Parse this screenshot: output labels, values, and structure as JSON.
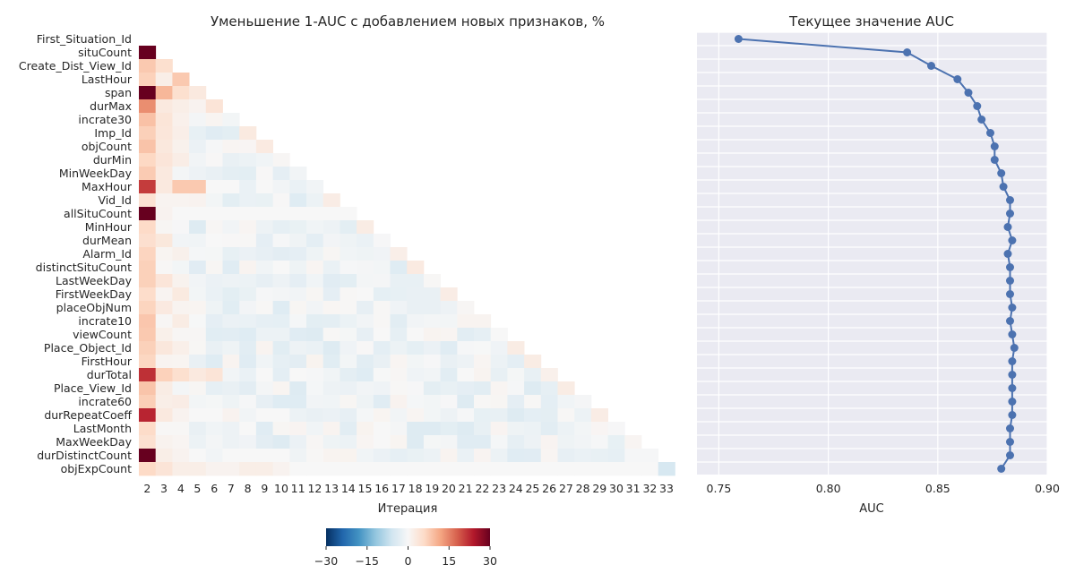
{
  "chart_data": [
    {
      "type": "heatmap",
      "title": "Уменьшение 1-AUC с добавлением новых признаков, %",
      "xlabel": "Итерация",
      "ylabel": "",
      "x_categories": [
        "2",
        "3",
        "4",
        "5",
        "6",
        "7",
        "8",
        "9",
        "10",
        "11",
        "12",
        "13",
        "14",
        "15",
        "16",
        "17",
        "18",
        "19",
        "20",
        "21",
        "22",
        "23",
        "24",
        "25",
        "26",
        "27",
        "28",
        "29",
        "30",
        "31",
        "32",
        "33"
      ],
      "y_categories": [
        "First_Situation_Id",
        "situCount",
        "Create_Dist_View_Id",
        "LastHour",
        "span",
        "durMax",
        "incrate30",
        "Imp_Id",
        "objCount",
        "durMin",
        "MinWeekDay",
        "MaxHour",
        "Vid_Id",
        "allSituCount",
        "MinHour",
        "durMean",
        "Alarm_Id",
        "distinctSituCount",
        "LastWeekDay",
        "FirstWeekDay",
        "placeObjNum",
        "incrate10",
        "viewCount",
        "Place_Object_Id",
        "FirstHour",
        "durTotal",
        "Place_View_Id",
        "incrate60",
        "durRepeatCoeff",
        "LastMonth",
        "MaxWeekDay",
        "durDistinctCount",
        "objExpCount"
      ],
      "value_range": [
        -30,
        30
      ],
      "colormap": "RdBu_r",
      "mask": "upper triangle — row i shows iterations 2..(i+1); first row empty",
      "key_values": {
        "situCount": [
          38
        ],
        "Create_Dist_View_Id": [
          8,
          5
        ],
        "LastHour": [
          7,
          2,
          8
        ],
        "span": [
          37,
          10,
          5,
          3
        ],
        "durMax": [
          14,
          3,
          2,
          1,
          4
        ],
        "allSituCount": [
          38,
          1,
          0,
          0,
          0,
          0,
          0,
          0,
          0,
          0,
          0,
          0,
          0
        ],
        "MaxHour": [
          21,
          3,
          8,
          8,
          0,
          0,
          -2,
          0,
          -1,
          -2,
          -1
        ],
        "durRepeatCoeff": [
          23,
          3,
          1,
          0,
          0,
          1,
          -1,
          0,
          0
        ],
        "durDistinctCount": [
          38,
          2,
          1,
          0,
          -1,
          0,
          0,
          0,
          0
        ],
        "durTotal": [
          22,
          7,
          5,
          3,
          4,
          -1,
          -2,
          0,
          -3
        ],
        "objExpCount": [
          6,
          4,
          2,
          2,
          1,
          1,
          2,
          2,
          1,
          0,
          0,
          0,
          0,
          0,
          0,
          0,
          0,
          0,
          0,
          0,
          0,
          0,
          0,
          0,
          0,
          0,
          0,
          0,
          0,
          0,
          0,
          -5
        ]
      },
      "colorbar": {
        "ticks": [
          -30,
          -15,
          0,
          15,
          30
        ],
        "placement": "bottom-center"
      }
    },
    {
      "type": "line",
      "title": "Текущее значение AUC",
      "xlabel": "AUC",
      "ylabel": "",
      "xlim": [
        0.74,
        0.9
      ],
      "xticks": [
        "0.75",
        "0.80",
        "0.85",
        "0.90"
      ],
      "grid": true,
      "categories": [
        "First_Situation_Id",
        "situCount",
        "Create_Dist_View_Id",
        "LastHour",
        "span",
        "durMax",
        "incrate30",
        "Imp_Id",
        "objCount",
        "durMin",
        "MinWeekDay",
        "MaxHour",
        "Vid_Id",
        "allSituCount",
        "MinHour",
        "durMean",
        "Alarm_Id",
        "distinctSituCount",
        "LastWeekDay",
        "FirstWeekDay",
        "placeObjNum",
        "incrate10",
        "viewCount",
        "Place_Object_Id",
        "FirstHour",
        "durTotal",
        "Place_View_Id",
        "incrate60",
        "durRepeatCoeff",
        "LastMonth",
        "MaxWeekDay",
        "durDistinctCount",
        "objExpCount"
      ],
      "values": [
        0.759,
        0.836,
        0.847,
        0.859,
        0.864,
        0.868,
        0.87,
        0.874,
        0.876,
        0.876,
        0.879,
        0.88,
        0.883,
        0.883,
        0.882,
        0.884,
        0.882,
        0.883,
        0.883,
        0.883,
        0.884,
        0.883,
        0.884,
        0.885,
        0.884,
        0.884,
        0.884,
        0.884,
        0.884,
        0.883,
        0.883,
        0.883,
        0.879
      ]
    }
  ]
}
